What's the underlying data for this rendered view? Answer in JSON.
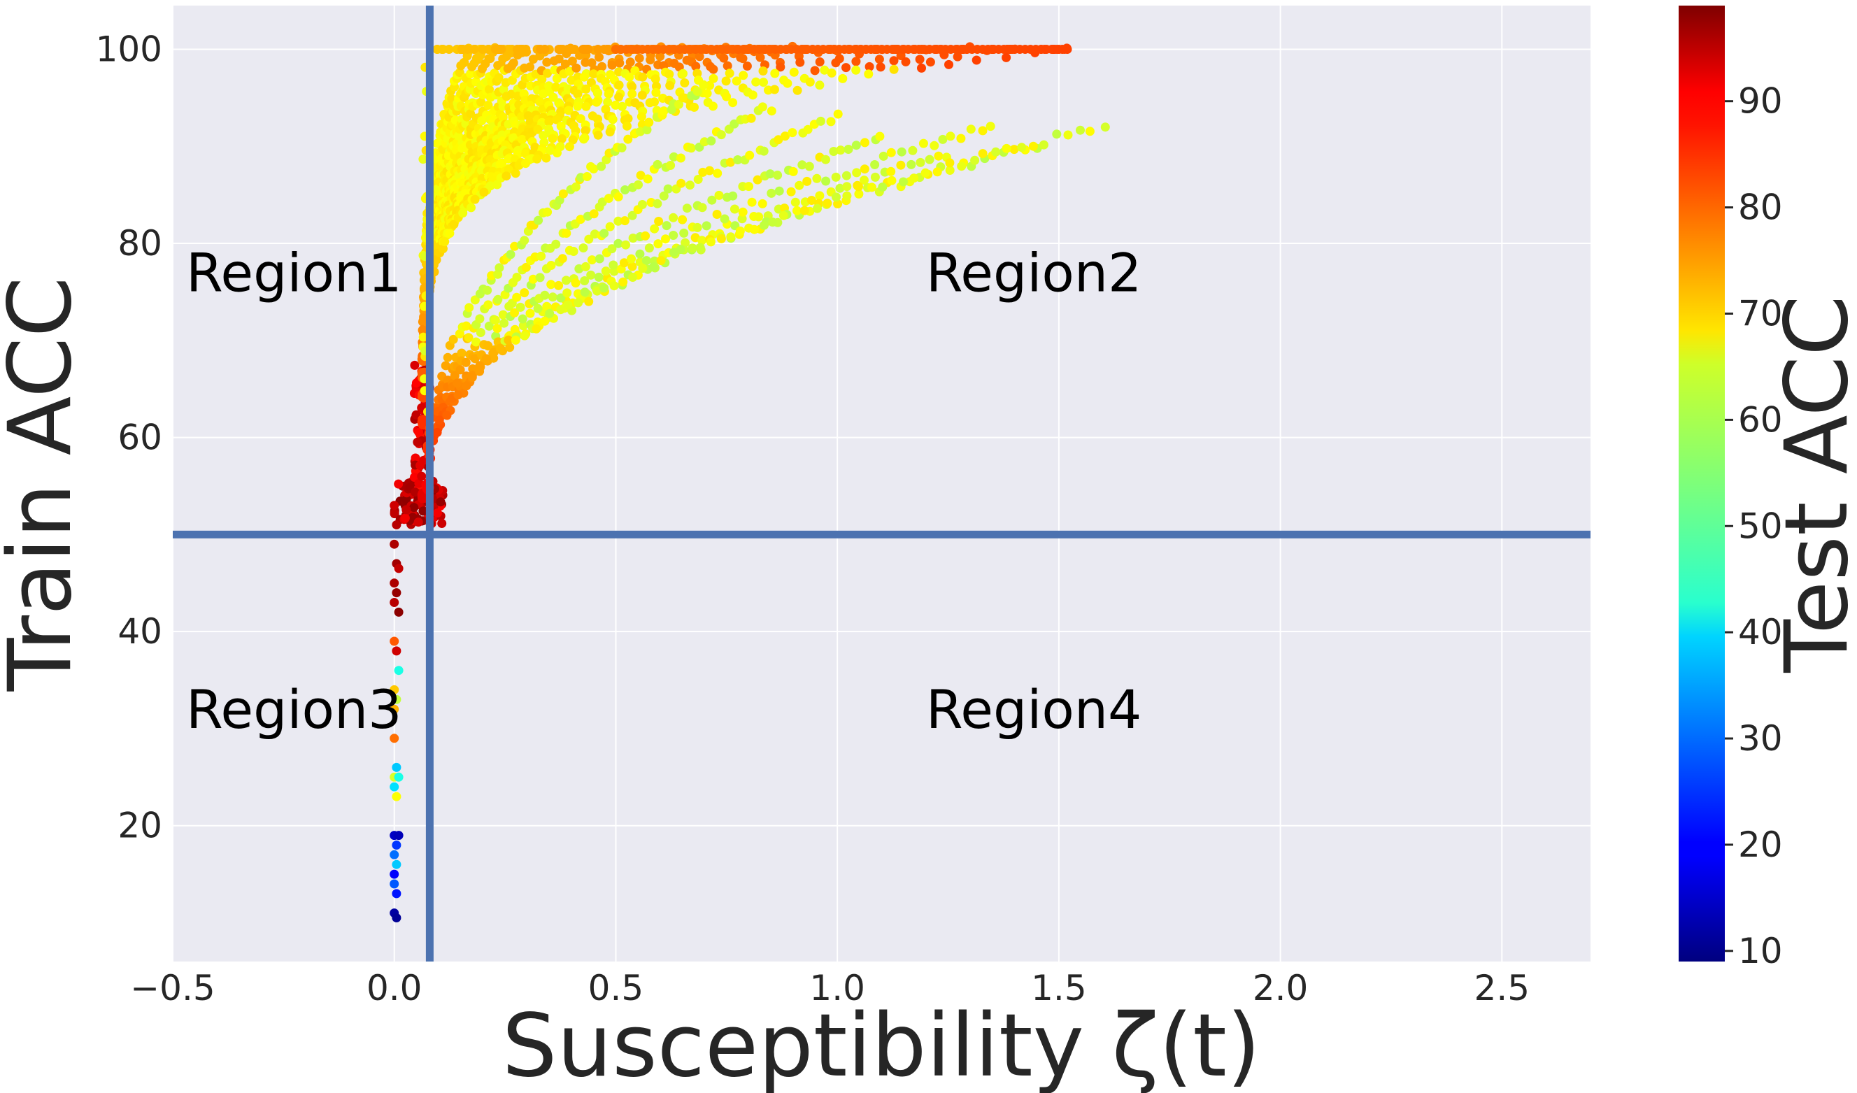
{
  "chart_data": {
    "type": "scatter",
    "xlabel": "Susceptibility ζ(t)",
    "ylabel": "Train ACC",
    "colorbar_label": "Test ACC",
    "xlim": [
      -0.5,
      2.7
    ],
    "ylim": [
      6,
      104.5
    ],
    "x_ticks": [
      -0.5,
      0.0,
      0.5,
      1.0,
      1.5,
      2.0,
      2.5
    ],
    "x_tick_labels": [
      "−0.5",
      "0.0",
      "0.5",
      "1.0",
      "1.5",
      "2.0",
      "2.5"
    ],
    "y_ticks": [
      20,
      40,
      60,
      80,
      100
    ],
    "y_tick_labels": [
      "20",
      "40",
      "60",
      "80",
      "100"
    ],
    "colorbar_range": [
      9,
      99
    ],
    "colorbar_ticks": [
      10,
      20,
      30,
      40,
      50,
      60,
      70,
      80,
      90
    ],
    "colorbar_tick_labels": [
      "10",
      "20",
      "30",
      "40",
      "50",
      "60",
      "70",
      "80",
      "90"
    ],
    "colormap": "jet",
    "grid": true,
    "threshold_lines": {
      "vertical_x": 0.08,
      "horizontal_y": 50,
      "color": "#4c72b0"
    },
    "regions": [
      {
        "name": "Region1",
        "x": -0.47,
        "y": 77
      },
      {
        "name": "Region2",
        "x": 1.2,
        "y": 77
      },
      {
        "name": "Region3",
        "x": -0.47,
        "y": 32
      },
      {
        "name": "Region4",
        "x": 1.2,
        "y": 32
      }
    ],
    "curve_families": [
      {
        "desc": "curves reaching 100% train acc",
        "final_susceptibility": [
          0.17,
          0.2,
          0.23,
          0.27,
          0.3,
          0.35,
          0.4,
          0.45,
          0.5,
          0.55,
          0.6,
          0.65,
          0.7,
          0.75,
          0.8,
          0.85,
          0.9,
          1.0,
          1.1,
          1.2,
          1.3,
          1.4,
          1.52
        ],
        "final_train_acc": 100,
        "final_test_acc": [
          70,
          70,
          71,
          71,
          72,
          72,
          73,
          73,
          74,
          74,
          75,
          75,
          76,
          77,
          77,
          78,
          78,
          79,
          80,
          80,
          81,
          81,
          82
        ]
      },
      {
        "desc": "curves plateauing below 100",
        "final_susceptibility": [
          0.7,
          0.85,
          1.0,
          1.1,
          1.25,
          1.35,
          1.45,
          1.6
        ],
        "final_train_acc": [
          96,
          94,
          93,
          91,
          89,
          92,
          90,
          92
        ],
        "final_test_acc": 62
      }
    ],
    "low_susceptibility_column": [
      {
        "x": 0.0,
        "y": 53,
        "c": 92
      },
      {
        "x": 0.005,
        "y": 51,
        "c": 94
      },
      {
        "x": 0.0,
        "y": 49,
        "c": 95
      },
      {
        "x": 0.005,
        "y": 47,
        "c": 96
      },
      {
        "x": 0.01,
        "y": 46.5,
        "c": 93
      },
      {
        "x": 0.0,
        "y": 45,
        "c": 95
      },
      {
        "x": 0.005,
        "y": 44,
        "c": 97
      },
      {
        "x": 0.0,
        "y": 43,
        "c": 94
      },
      {
        "x": 0.01,
        "y": 42,
        "c": 98
      },
      {
        "x": 0.0,
        "y": 39,
        "c": 80
      },
      {
        "x": 0.005,
        "y": 38,
        "c": 92
      },
      {
        "x": 0.01,
        "y": 36,
        "c": 45
      },
      {
        "x": 0.0,
        "y": 34,
        "c": 70
      },
      {
        "x": 0.005,
        "y": 33,
        "c": 60
      },
      {
        "x": 0.0,
        "y": 32,
        "c": 72
      },
      {
        "x": 0.0,
        "y": 29,
        "c": 78
      },
      {
        "x": 0.005,
        "y": 26,
        "c": 38
      },
      {
        "x": 0.0,
        "y": 25,
        "c": 62
      },
      {
        "x": 0.01,
        "y": 25,
        "c": 45
      },
      {
        "x": 0.0,
        "y": 24,
        "c": 40
      },
      {
        "x": 0.005,
        "y": 23,
        "c": 65
      },
      {
        "x": 0.0,
        "y": 19,
        "c": 15
      },
      {
        "x": 0.01,
        "y": 19,
        "c": 14
      },
      {
        "x": 0.005,
        "y": 18,
        "c": 25
      },
      {
        "x": 0.0,
        "y": 17,
        "c": 30
      },
      {
        "x": 0.005,
        "y": 16,
        "c": 38
      },
      {
        "x": 0.0,
        "y": 15,
        "c": 20
      },
      {
        "x": 0.0,
        "y": 14,
        "c": 28
      },
      {
        "x": 0.005,
        "y": 13,
        "c": 22
      },
      {
        "x": 0.0,
        "y": 11,
        "c": 12
      },
      {
        "x": 0.005,
        "y": 10.5,
        "c": 11
      }
    ]
  }
}
